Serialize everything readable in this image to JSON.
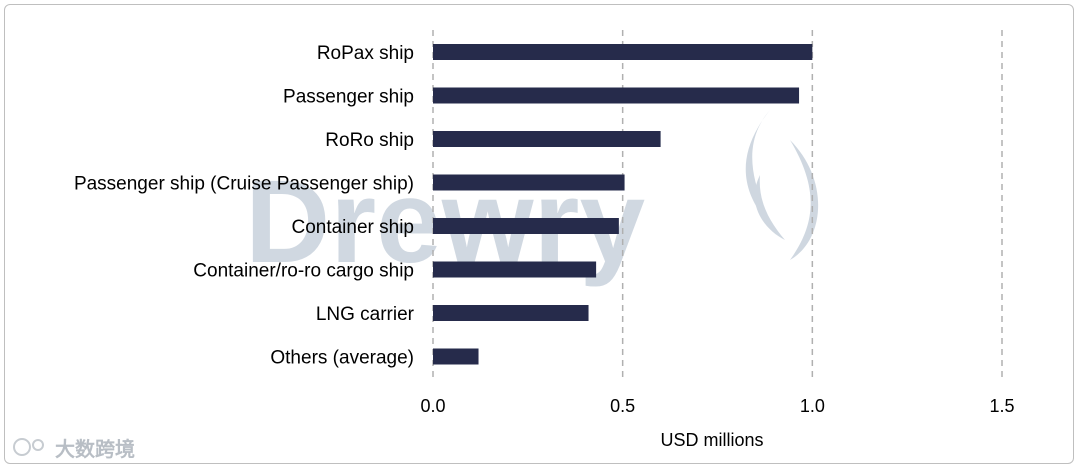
{
  "chart_data": {
    "type": "bar",
    "orientation": "horizontal",
    "categories": [
      "RoPax ship",
      "Passenger ship",
      "RoRo ship",
      "Passenger ship (Cruise Passenger ship)",
      "Container ship",
      "Container/ro-ro cargo ship",
      "LNG carrier",
      "Others (average)"
    ],
    "values": [
      1.0,
      0.965,
      0.6,
      0.505,
      0.49,
      0.43,
      0.41,
      0.12
    ],
    "xlabel": "USD millions",
    "ylabel": "",
    "xlim": [
      0,
      1.5
    ],
    "xticks": [
      "0.0",
      "0.5",
      "1.0",
      "1.5"
    ],
    "tick_values": [
      0,
      0.5,
      1.0,
      1.5
    ],
    "grid": "vertical dashed",
    "bar_color": "#262b4b",
    "grid_color": "#b0b0b0"
  },
  "watermark": {
    "brand": "Drewry",
    "footer_logo": "大数跨境"
  }
}
